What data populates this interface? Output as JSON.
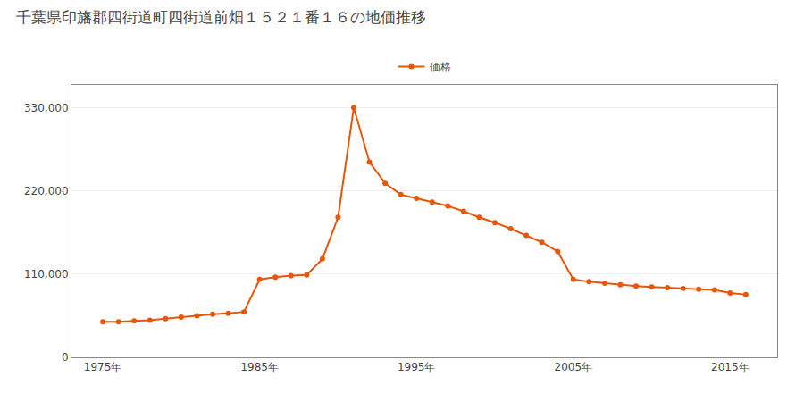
{
  "chart_data": {
    "type": "line",
    "title": "千葉県印旛郡四街道町四街道前畑１５２１番１６の地価推移",
    "x": [
      1975,
      1976,
      1977,
      1978,
      1979,
      1980,
      1981,
      1982,
      1983,
      1984,
      1985,
      1986,
      1987,
      1988,
      1989,
      1990,
      1991,
      1992,
      1993,
      1994,
      1995,
      1996,
      1997,
      1998,
      1999,
      2000,
      2001,
      2002,
      2003,
      2004,
      2005,
      2006,
      2007,
      2008,
      2009,
      2010,
      2011,
      2012,
      2013,
      2014,
      2015,
      2016
    ],
    "series": [
      {
        "name": "価格",
        "color": "#e8560a",
        "marker": "circle",
        "values": [
          47000,
          47000,
          48000,
          49000,
          51000,
          53000,
          55000,
          57000,
          58000,
          60000,
          103000,
          106000,
          108000,
          109000,
          130000,
          185000,
          330000,
          258000,
          230000,
          215000,
          210000,
          205000,
          200000,
          193000,
          185000,
          178000,
          170000,
          161000,
          152000,
          140000,
          103000,
          100000,
          98000,
          96000,
          94000,
          93000,
          92000,
          91000,
          90000,
          89000,
          85000,
          83000
        ]
      }
    ],
    "xlim": [
      1973,
      2018
    ],
    "xticks": [
      {
        "value": 1975,
        "label": "1975年"
      },
      {
        "value": 1985,
        "label": "1985年"
      },
      {
        "value": 1995,
        "label": "1995年"
      },
      {
        "value": 2005,
        "label": "2005年"
      },
      {
        "value": 2015,
        "label": "2015年"
      }
    ],
    "ylim": [
      0,
      360000
    ],
    "yticks": [
      0,
      {
        "value": 110000,
        "label": "110,000"
      },
      {
        "value": 220000,
        "label": "220,000"
      },
      {
        "value": 330000,
        "label": "330,000"
      }
    ],
    "grid": true,
    "legend": "top"
  }
}
